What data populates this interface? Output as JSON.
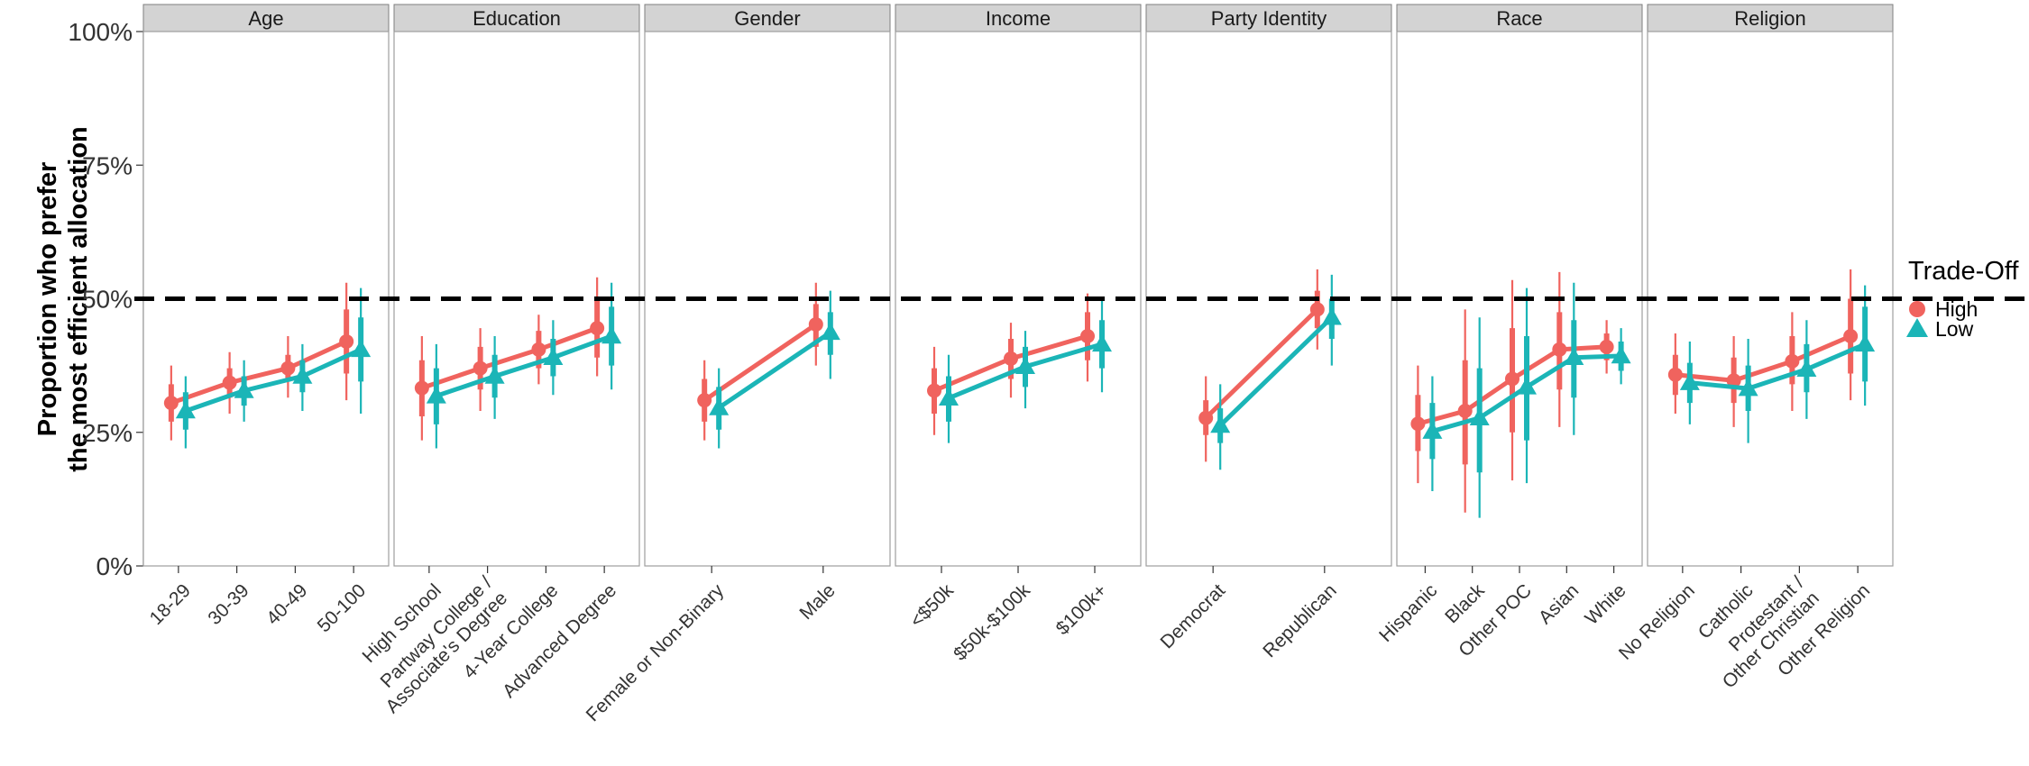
{
  "chart_data": {
    "type": "line",
    "title": "",
    "ylabel": [
      "Proportion who prefer",
      "the most efficient allocation"
    ],
    "ylim": [
      0,
      1
    ],
    "yticks": [
      0,
      0.25,
      0.5,
      0.75,
      1.0
    ],
    "ytick_labels": [
      "0%",
      "25%",
      "50%",
      "75%",
      "100%"
    ],
    "reference_line": 0.5,
    "legend_title": "Trade-Off",
    "legend_position": "right",
    "series_meta": [
      {
        "name": "High",
        "color": "#F0635E",
        "marker": "circle"
      },
      {
        "name": "Low",
        "color": "#1BB5B7",
        "marker": "triangle"
      }
    ],
    "panels": [
      {
        "title": "Age",
        "categories": [
          [
            "18-29"
          ],
          [
            "30-39"
          ],
          [
            "40-49"
          ],
          [
            "50-100"
          ]
        ],
        "series": [
          {
            "name": "High",
            "values": [
              0.305,
              0.343,
              0.37,
              0.42
            ],
            "ci_inner": [
              [
                0.27,
                0.34
              ],
              [
                0.315,
                0.37
              ],
              [
                0.345,
                0.395
              ],
              [
                0.36,
                0.48
              ]
            ],
            "ci_outer": [
              [
                0.235,
                0.375
              ],
              [
                0.285,
                0.4
              ],
              [
                0.315,
                0.43
              ],
              [
                0.31,
                0.53
              ]
            ]
          },
          {
            "name": "Low",
            "values": [
              0.29,
              0.328,
              0.355,
              0.405
            ],
            "ci_inner": [
              [
                0.255,
                0.325
              ],
              [
                0.3,
                0.355
              ],
              [
                0.325,
                0.385
              ],
              [
                0.345,
                0.465
              ]
            ],
            "ci_outer": [
              [
                0.22,
                0.355
              ],
              [
                0.27,
                0.385
              ],
              [
                0.29,
                0.415
              ],
              [
                0.285,
                0.52
              ]
            ]
          }
        ]
      },
      {
        "title": "Education",
        "categories": [
          [
            "High School"
          ],
          [
            "Partway College /",
            "Associate's Degree"
          ],
          [
            "4-Year College"
          ],
          [
            "Advanced Degree"
          ]
        ],
        "series": [
          {
            "name": "High",
            "values": [
              0.333,
              0.37,
              0.405,
              0.445
            ],
            "ci_inner": [
              [
                0.28,
                0.385
              ],
              [
                0.33,
                0.41
              ],
              [
                0.37,
                0.44
              ],
              [
                0.39,
                0.5
              ]
            ],
            "ci_outer": [
              [
                0.235,
                0.43
              ],
              [
                0.29,
                0.445
              ],
              [
                0.34,
                0.47
              ],
              [
                0.355,
                0.54
              ]
            ]
          },
          {
            "name": "Low",
            "values": [
              0.318,
              0.355,
              0.39,
              0.43
            ],
            "ci_inner": [
              [
                0.265,
                0.37
              ],
              [
                0.315,
                0.395
              ],
              [
                0.355,
                0.425
              ],
              [
                0.375,
                0.485
              ]
            ],
            "ci_outer": [
              [
                0.22,
                0.415
              ],
              [
                0.275,
                0.43
              ],
              [
                0.32,
                0.46
              ],
              [
                0.33,
                0.53
              ]
            ]
          }
        ]
      },
      {
        "title": "Gender",
        "categories": [
          [
            "Female or Non-Binary"
          ],
          [
            "Male"
          ]
        ],
        "series": [
          {
            "name": "High",
            "values": [
              0.31,
              0.452
            ],
            "ci_inner": [
              [
                0.27,
                0.35
              ],
              [
                0.41,
                0.49
              ]
            ],
            "ci_outer": [
              [
                0.235,
                0.385
              ],
              [
                0.375,
                0.53
              ]
            ]
          },
          {
            "name": "Low",
            "values": [
              0.296,
              0.437
            ],
            "ci_inner": [
              [
                0.255,
                0.335
              ],
              [
                0.395,
                0.475
              ]
            ],
            "ci_outer": [
              [
                0.22,
                0.37
              ],
              [
                0.35,
                0.515
              ]
            ]
          }
        ]
      },
      {
        "title": "Income",
        "categories": [
          [
            "<$50k"
          ],
          [
            "$50k-$100k"
          ],
          [
            "$100k+"
          ]
        ],
        "series": [
          {
            "name": "High",
            "values": [
              0.328,
              0.388,
              0.43
            ],
            "ci_inner": [
              [
                0.285,
                0.37
              ],
              [
                0.35,
                0.425
              ],
              [
                0.385,
                0.475
              ]
            ],
            "ci_outer": [
              [
                0.245,
                0.41
              ],
              [
                0.315,
                0.455
              ],
              [
                0.345,
                0.51
              ]
            ]
          },
          {
            "name": "Low",
            "values": [
              0.314,
              0.373,
              0.415
            ],
            "ci_inner": [
              [
                0.27,
                0.355
              ],
              [
                0.335,
                0.41
              ],
              [
                0.37,
                0.46
              ]
            ],
            "ci_outer": [
              [
                0.23,
                0.395
              ],
              [
                0.295,
                0.44
              ],
              [
                0.325,
                0.5
              ]
            ]
          }
        ]
      },
      {
        "title": "Party Identity",
        "categories": [
          [
            "Democrat"
          ],
          [
            "Republican"
          ]
        ],
        "series": [
          {
            "name": "High",
            "values": [
              0.277,
              0.48
            ],
            "ci_inner": [
              [
                0.245,
                0.31
              ],
              [
                0.445,
                0.515
              ]
            ],
            "ci_outer": [
              [
                0.195,
                0.355
              ],
              [
                0.405,
                0.555
              ]
            ]
          },
          {
            "name": "Low",
            "values": [
              0.263,
              0.465
            ],
            "ci_inner": [
              [
                0.23,
                0.295
              ],
              [
                0.425,
                0.5
              ]
            ],
            "ci_outer": [
              [
                0.18,
                0.34
              ],
              [
                0.375,
                0.545
              ]
            ]
          }
        ]
      },
      {
        "title": "Race",
        "categories": [
          [
            "Hispanic"
          ],
          [
            "Black"
          ],
          [
            "Other POC"
          ],
          [
            "Asian"
          ],
          [
            "White"
          ]
        ],
        "series": [
          {
            "name": "High",
            "values": [
              0.266,
              0.29,
              0.35,
              0.405,
              0.41
            ],
            "ci_inner": [
              [
                0.215,
                0.32
              ],
              [
                0.19,
                0.385
              ],
              [
                0.25,
                0.445
              ],
              [
                0.33,
                0.475
              ],
              [
                0.385,
                0.435
              ]
            ],
            "ci_outer": [
              [
                0.155,
                0.375
              ],
              [
                0.1,
                0.48
              ],
              [
                0.16,
                0.535
              ],
              [
                0.26,
                0.55
              ],
              [
                0.36,
                0.46
              ]
            ]
          },
          {
            "name": "Low",
            "values": [
              0.252,
              0.277,
              0.335,
              0.39,
              0.393
            ],
            "ci_inner": [
              [
                0.2,
                0.305
              ],
              [
                0.175,
                0.37
              ],
              [
                0.235,
                0.43
              ],
              [
                0.315,
                0.46
              ],
              [
                0.365,
                0.42
              ]
            ],
            "ci_outer": [
              [
                0.14,
                0.355
              ],
              [
                0.09,
                0.465
              ],
              [
                0.155,
                0.52
              ],
              [
                0.245,
                0.53
              ],
              [
                0.34,
                0.445
              ]
            ]
          }
        ]
      },
      {
        "title": "Religion",
        "categories": [
          [
            "No Religion"
          ],
          [
            "Catholic"
          ],
          [
            "Protestant /",
            "Other Christian"
          ],
          [
            "Other Religion"
          ]
        ],
        "series": [
          {
            "name": "High",
            "values": [
              0.358,
              0.347,
              0.383,
              0.43
            ],
            "ci_inner": [
              [
                0.32,
                0.395
              ],
              [
                0.305,
                0.39
              ],
              [
                0.34,
                0.43
              ],
              [
                0.36,
                0.5
              ]
            ],
            "ci_outer": [
              [
                0.285,
                0.435
              ],
              [
                0.26,
                0.43
              ],
              [
                0.29,
                0.475
              ],
              [
                0.31,
                0.555
              ]
            ]
          },
          {
            "name": "Low",
            "values": [
              0.343,
              0.332,
              0.368,
              0.415
            ],
            "ci_inner": [
              [
                0.305,
                0.38
              ],
              [
                0.29,
                0.375
              ],
              [
                0.325,
                0.415
              ],
              [
                0.345,
                0.485
              ]
            ],
            "ci_outer": [
              [
                0.265,
                0.42
              ],
              [
                0.23,
                0.425
              ],
              [
                0.275,
                0.46
              ],
              [
                0.3,
                0.525
              ]
            ]
          }
        ]
      }
    ]
  }
}
